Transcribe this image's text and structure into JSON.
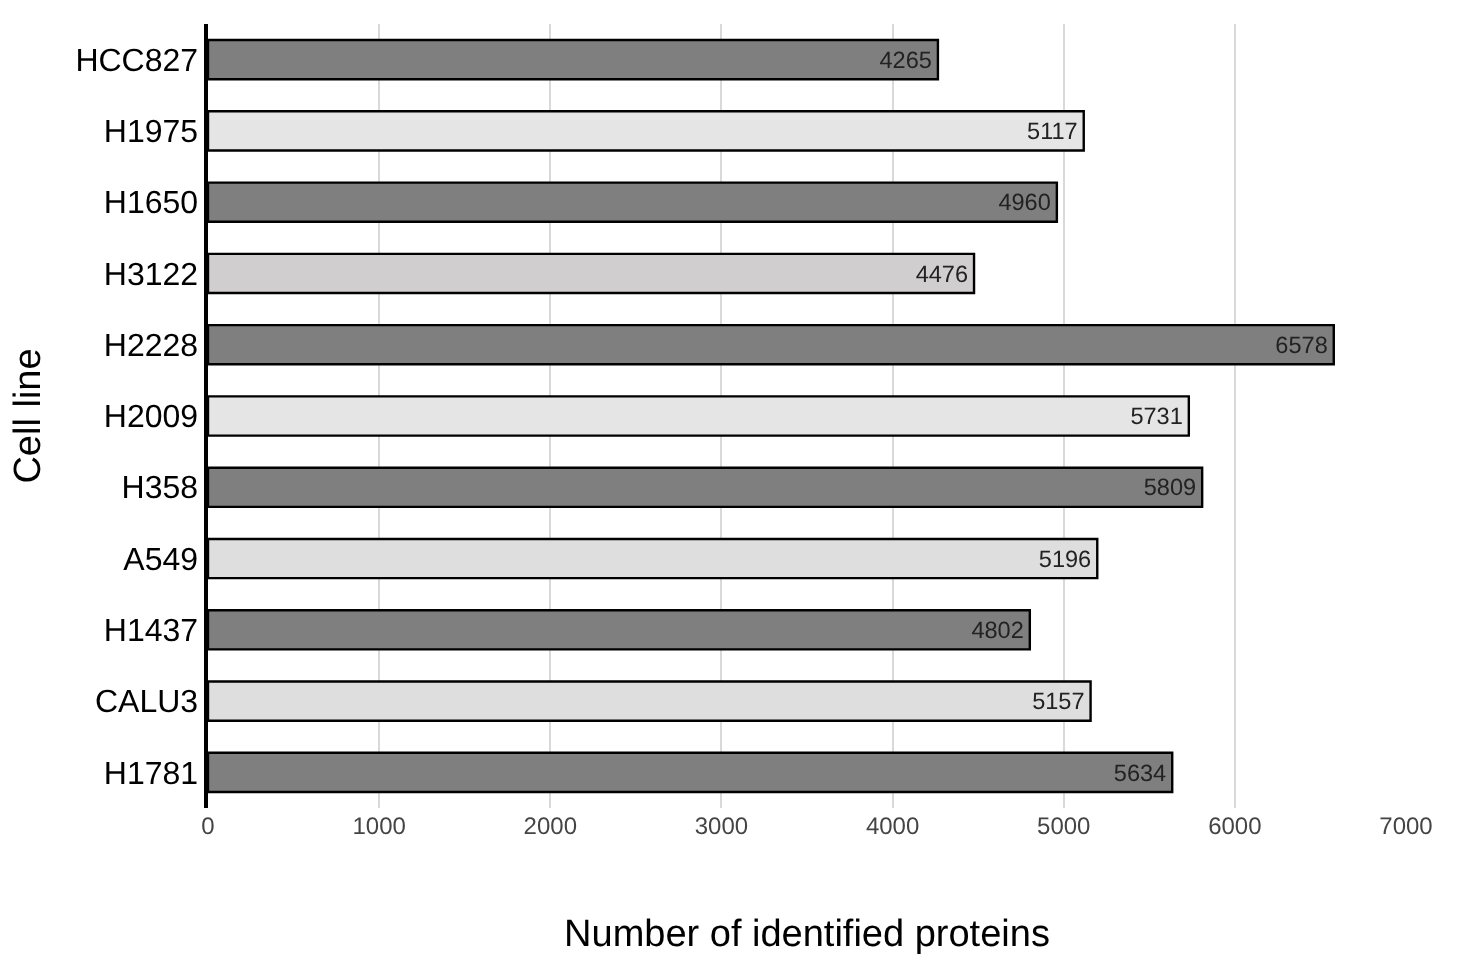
{
  "chart_data": {
    "type": "bar",
    "orientation": "horizontal",
    "xlabel": "Number of identified proteins",
    "ylabel": "Cell line",
    "categories": [
      "HCC827",
      "H1975",
      "H1650",
      "H3122",
      "H2228",
      "H2009",
      "H358",
      "A549",
      "H1437",
      "CALU3",
      "H1781"
    ],
    "values": [
      4265,
      5117,
      4960,
      4476,
      6578,
      5731,
      5809,
      5196,
      4802,
      5157,
      5634
    ],
    "colors": [
      "#7f7f7f",
      "#e5e5e5",
      "#7f7f7f",
      "#d0cece",
      "#7f7f7f",
      "#e5e5e5",
      "#7f7f7f",
      "#dedede",
      "#7f7f7f",
      "#dedede",
      "#7f7f7f"
    ],
    "xlim": [
      0,
      7000
    ],
    "xticks": [
      0,
      1000,
      2000,
      3000,
      4000,
      5000,
      6000,
      7000
    ],
    "grid": "x",
    "data_labels": true
  }
}
